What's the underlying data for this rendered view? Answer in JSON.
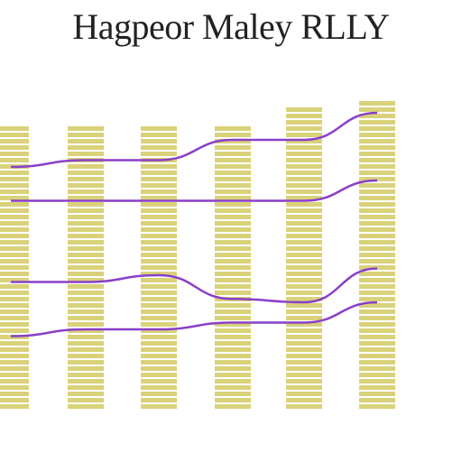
{
  "colors": {
    "bar_fill": "#d9d27a",
    "bar_stripe": "#ffffff",
    "line": "#8a3fc8",
    "arrow": "#222222"
  },
  "chart_data": {
    "type": "bar",
    "title": "Hagpeor Maley RLLY",
    "categories": [
      "",
      "",
      "",
      "",
      "",
      ""
    ],
    "bar_values": [
      84,
      84,
      84,
      84,
      90,
      92
    ],
    "series": [
      {
        "values": [
          72,
          74,
          74,
          80,
          80,
          88
        ]
      },
      {
        "values": [
          62,
          62,
          62,
          62,
          62,
          68
        ]
      },
      {
        "values": [
          38,
          38,
          40,
          33,
          32,
          42
        ]
      },
      {
        "values": [
          22,
          24,
          24,
          26,
          26,
          32
        ]
      }
    ],
    "ylim": [
      0,
      100
    ],
    "grid": false,
    "legend": "none"
  }
}
